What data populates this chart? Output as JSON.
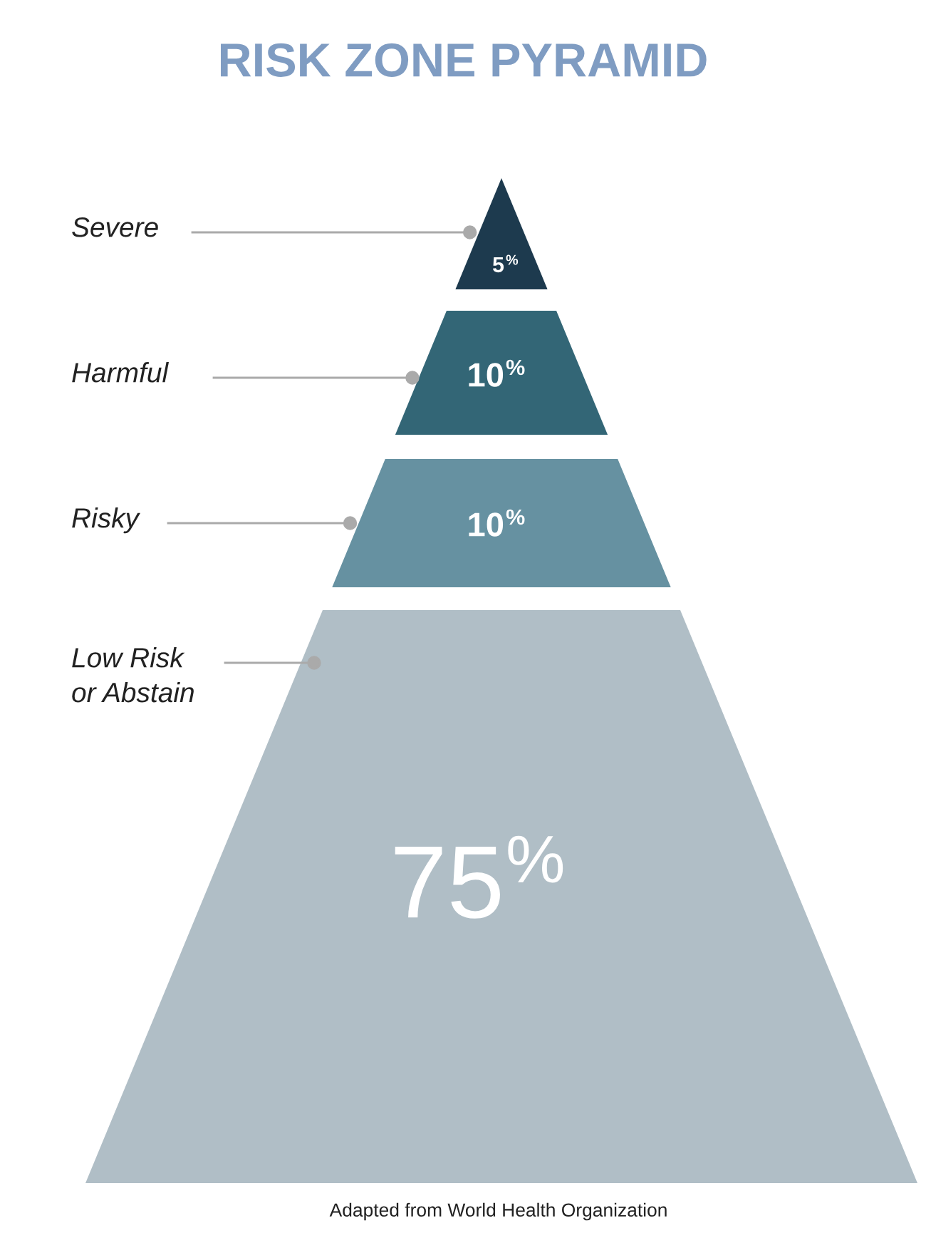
{
  "chart_data": {
    "type": "other",
    "title": "RISK ZONE PYRAMID",
    "categories": [
      "Severe",
      "Harmful",
      "Risky",
      "Low Risk\nor Abstain"
    ],
    "values": [
      5,
      10,
      10,
      75
    ],
    "value_labels": [
      "5%",
      "10%",
      "10%",
      "75%"
    ],
    "colors": [
      "#1d3a4e",
      "#336676",
      "#6691a1",
      "#b0bec6"
    ],
    "annotations": [
      "Adapted from World Health Organization"
    ]
  }
}
